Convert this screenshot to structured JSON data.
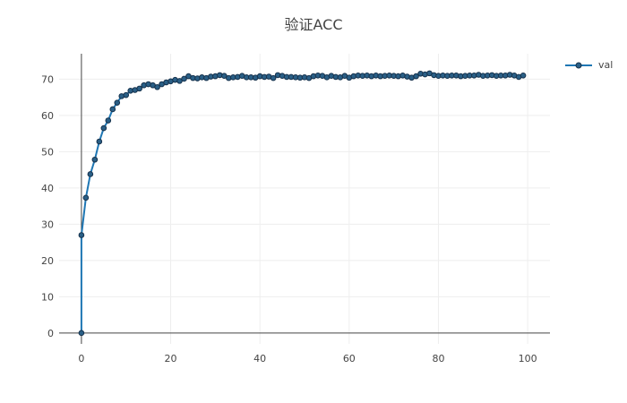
{
  "chart_data": {
    "type": "line",
    "title": "验证ACC",
    "xlabel": "",
    "ylabel": "",
    "xlim": [
      -5,
      105
    ],
    "ylim": [
      -3,
      77
    ],
    "xticks": [
      0,
      20,
      40,
      60,
      80,
      100
    ],
    "yticks": [
      0,
      10,
      20,
      30,
      40,
      50,
      60,
      70
    ],
    "grid": true,
    "legend_position": "top-right",
    "series": [
      {
        "name": "val",
        "color": "#1f77b4",
        "marker_fill": "#2a5f86",
        "marker_stroke": "#16324d",
        "x": [
          0,
          0,
          1,
          2,
          3,
          4,
          5,
          6,
          7,
          8,
          9,
          10,
          11,
          12,
          13,
          14,
          15,
          16,
          17,
          18,
          19,
          20,
          21,
          22,
          23,
          24,
          25,
          26,
          27,
          28,
          29,
          30,
          31,
          32,
          33,
          34,
          35,
          36,
          37,
          38,
          39,
          40,
          41,
          42,
          43,
          44,
          45,
          46,
          47,
          48,
          49,
          50,
          51,
          52,
          53,
          54,
          55,
          56,
          57,
          58,
          59,
          60,
          61,
          62,
          63,
          64,
          65,
          66,
          67,
          68,
          69,
          70,
          71,
          72,
          73,
          74,
          75,
          76,
          77,
          78,
          79,
          80,
          81,
          82,
          83,
          84,
          85,
          86,
          87,
          88,
          89,
          90,
          91,
          92,
          93,
          94,
          95,
          96,
          97,
          98,
          99
        ],
        "y": [
          0,
          27,
          37.3,
          43.8,
          47.8,
          52.8,
          56.5,
          58.6,
          61.7,
          63.5,
          65.3,
          65.6,
          66.8,
          67.0,
          67.4,
          68.3,
          68.6,
          68.3,
          67.8,
          68.6,
          69.1,
          69.4,
          69.8,
          69.5,
          70.1,
          70.8,
          70.3,
          70.2,
          70.5,
          70.3,
          70.7,
          70.8,
          71.1,
          70.9,
          70.3,
          70.5,
          70.6,
          70.9,
          70.5,
          70.5,
          70.4,
          70.8,
          70.6,
          70.7,
          70.3,
          71.1,
          70.9,
          70.6,
          70.6,
          70.5,
          70.4,
          70.5,
          70.3,
          70.8,
          71.0,
          70.9,
          70.5,
          70.9,
          70.6,
          70.5,
          70.9,
          70.4,
          70.8,
          71.0,
          70.9,
          71.0,
          70.8,
          71.0,
          70.8,
          70.9,
          71.0,
          70.9,
          70.8,
          71.0,
          70.7,
          70.4,
          70.8,
          71.5,
          71.3,
          71.6,
          71.1,
          70.9,
          71.0,
          70.9,
          71.0,
          71.0,
          70.8,
          70.9,
          71.0,
          71.0,
          71.2,
          70.9,
          71.0,
          71.1,
          70.9,
          71.0,
          71.0,
          71.2,
          71.0,
          70.6,
          71.0
        ]
      }
    ]
  }
}
